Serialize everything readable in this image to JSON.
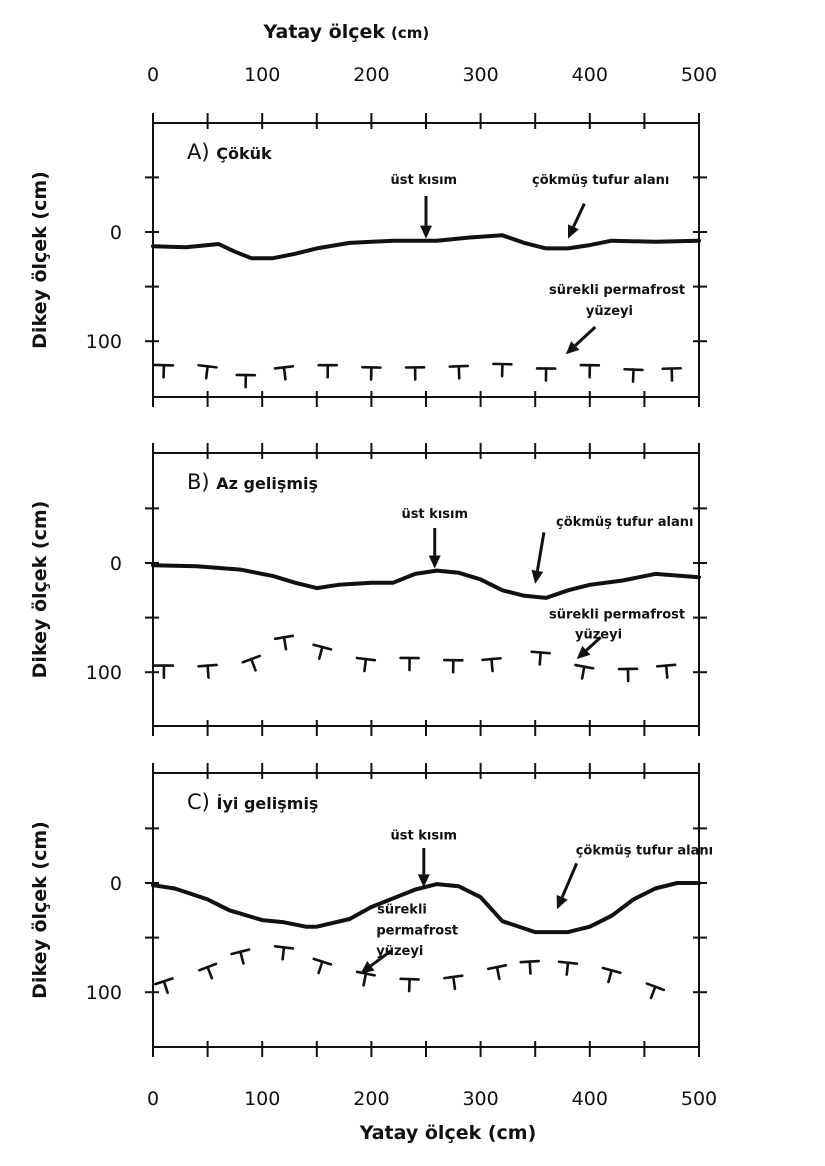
{
  "top_axis": {
    "title": "Yatay ölçek",
    "unit": "(cm)"
  },
  "bottom_axis": {
    "title": "Yatay ölçek (cm)"
  },
  "chart_data": {
    "type": "diagram",
    "x_ticks": [
      0,
      100,
      200,
      300,
      400,
      500
    ],
    "y_ticks": [
      0,
      100
    ],
    "xlim": [
      0,
      500
    ],
    "ylim": [
      -100,
      150
    ],
    "y_inverted": true,
    "panels": [
      {
        "id": "A",
        "title_prefix": "A)",
        "title_bold": "Çökük",
        "ylabel": "Dikey ölçek (cm)",
        "surface": [
          [
            0,
            13
          ],
          [
            30,
            14
          ],
          [
            50,
            12
          ],
          [
            60,
            11
          ],
          [
            75,
            18
          ],
          [
            90,
            24
          ],
          [
            110,
            24
          ],
          [
            130,
            20
          ],
          [
            150,
            15
          ],
          [
            180,
            10
          ],
          [
            220,
            8
          ],
          [
            260,
            8
          ],
          [
            290,
            5
          ],
          [
            320,
            3
          ],
          [
            340,
            10
          ],
          [
            360,
            15
          ],
          [
            380,
            15
          ],
          [
            400,
            12
          ],
          [
            420,
            8
          ],
          [
            460,
            9
          ],
          [
            500,
            8
          ]
        ],
        "permafrost": [
          [
            10,
            122
          ],
          [
            50,
            123
          ],
          [
            85,
            131
          ],
          [
            120,
            124
          ],
          [
            160,
            122
          ],
          [
            200,
            124
          ],
          [
            240,
            124
          ],
          [
            280,
            123
          ],
          [
            320,
            121
          ],
          [
            360,
            125
          ],
          [
            400,
            122
          ],
          [
            440,
            126
          ],
          [
            475,
            125
          ]
        ],
        "annotations": [
          {
            "text": "üst kısım",
            "tx": 248,
            "ty": -44
          },
          {
            "text": "çökmüş tufur alanı",
            "tx": 410,
            "ty": -44
          },
          {
            "text": "sürekli permafrost",
            "tx": 425,
            "ty": 57
          },
          {
            "text": "yüzeyi",
            "tx": 418,
            "ty": 76
          }
        ],
        "arrows": [
          {
            "from": [
              250,
              -33
            ],
            "to": [
              250,
              6
            ]
          },
          {
            "from": [
              395,
              -26
            ],
            "to": [
              380,
              6
            ]
          },
          {
            "from": [
              405,
              87
            ],
            "to": [
              378,
              112
            ]
          }
        ]
      },
      {
        "id": "B",
        "title_prefix": "B)",
        "title_bold": "Az gelişmiş",
        "ylabel": "Dikey ölçek (cm)",
        "surface": [
          [
            0,
            2
          ],
          [
            40,
            3
          ],
          [
            80,
            6
          ],
          [
            110,
            12
          ],
          [
            130,
            18
          ],
          [
            150,
            23
          ],
          [
            170,
            20
          ],
          [
            200,
            18
          ],
          [
            220,
            18
          ],
          [
            240,
            10
          ],
          [
            260,
            7
          ],
          [
            280,
            9
          ],
          [
            300,
            15
          ],
          [
            320,
            25
          ],
          [
            340,
            30
          ],
          [
            360,
            32
          ],
          [
            380,
            25
          ],
          [
            400,
            20
          ],
          [
            430,
            16
          ],
          [
            460,
            10
          ],
          [
            500,
            13
          ]
        ],
        "permafrost": [
          [
            10,
            94
          ],
          [
            50,
            94
          ],
          [
            90,
            88
          ],
          [
            120,
            68
          ],
          [
            155,
            77
          ],
          [
            195,
            88
          ],
          [
            235,
            87
          ],
          [
            275,
            89
          ],
          [
            310,
            88
          ],
          [
            355,
            82
          ],
          [
            395,
            95
          ],
          [
            435,
            97
          ],
          [
            470,
            94
          ]
        ],
        "annotations": [
          {
            "text": "üst kısım",
            "tx": 258,
            "ty": -41
          },
          {
            "text": "çökmüş tufur alanı",
            "tx": 432,
            "ty": -34
          },
          {
            "text": "sürekli permafrost",
            "tx": 425,
            "ty": 51
          },
          {
            "text": "yüzeyi",
            "tx": 408,
            "ty": 69
          }
        ],
        "arrows": [
          {
            "from": [
              258,
              -32
            ],
            "to": [
              258,
              5
            ]
          },
          {
            "from": [
              358,
              -28
            ],
            "to": [
              350,
              19
            ]
          },
          {
            "from": [
              410,
              68
            ],
            "to": [
              388,
              88
            ]
          }
        ]
      },
      {
        "id": "C",
        "title_prefix": "C)",
        "title_bold": "İyi gelişmiş",
        "ylabel": "Dikey ölçek (cm)",
        "surface": [
          [
            0,
            2
          ],
          [
            20,
            5
          ],
          [
            50,
            15
          ],
          [
            70,
            25
          ],
          [
            100,
            34
          ],
          [
            120,
            36
          ],
          [
            140,
            40
          ],
          [
            150,
            40
          ],
          [
            180,
            33
          ],
          [
            200,
            22
          ],
          [
            220,
            14
          ],
          [
            240,
            6
          ],
          [
            260,
            1
          ],
          [
            280,
            3
          ],
          [
            300,
            13
          ],
          [
            320,
            35
          ],
          [
            350,
            45
          ],
          [
            380,
            45
          ],
          [
            400,
            40
          ],
          [
            420,
            30
          ],
          [
            440,
            15
          ],
          [
            460,
            5
          ],
          [
            480,
            0
          ],
          [
            500,
            0
          ]
        ],
        "permafrost": [
          [
            10,
            90
          ],
          [
            50,
            77
          ],
          [
            80,
            63
          ],
          [
            120,
            59
          ],
          [
            155,
            72
          ],
          [
            195,
            83
          ],
          [
            235,
            88
          ],
          [
            275,
            86
          ],
          [
            315,
            77
          ],
          [
            345,
            72
          ],
          [
            380,
            73
          ],
          [
            420,
            80
          ],
          [
            460,
            95
          ]
        ],
        "annotations": [
          {
            "text": "üst kısım",
            "tx": 248,
            "ty": -40
          },
          {
            "text": "çökmüş tufur alanı",
            "tx": 450,
            "ty": -26
          },
          {
            "text": "sürekli",
            "tx": 228,
            "ty": 28
          },
          {
            "text": "permafrost",
            "tx": 242,
            "ty": 47
          },
          {
            "text": "yüzeyi",
            "tx": 226,
            "ty": 66
          }
        ],
        "arrows": [
          {
            "from": [
              248,
              -32
            ],
            "to": [
              248,
              4
            ]
          },
          {
            "from": [
              388,
              -18
            ],
            "to": [
              370,
              24
            ]
          },
          {
            "from": [
              218,
              62
            ],
            "to": [
              190,
              83
            ]
          }
        ]
      }
    ]
  }
}
